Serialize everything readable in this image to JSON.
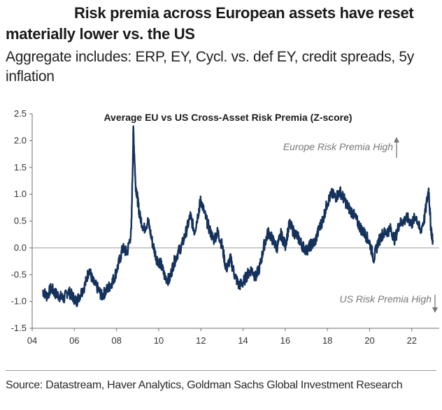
{
  "header": {
    "title": "Risk premia across European assets have reset materially lower vs. the US",
    "subtitle": "Aggregate includes: ERP, EY, Cycl. vs. def EY, credit spreads, 5y inflation"
  },
  "footer": {
    "source": "Source: Datastream, Haver Analytics, Goldman Sachs Global Investment Research"
  },
  "chart_data": {
    "type": "line",
    "title": "Average EU vs US Cross-Asset Risk Premia (Z-score)",
    "xlabel": "",
    "ylabel": "",
    "xlim": [
      2004.0,
      2023.3
    ],
    "ylim": [
      -1.5,
      2.5
    ],
    "x_ticks": [
      2004,
      2006,
      2008,
      2010,
      2012,
      2014,
      2016,
      2018,
      2020,
      2022
    ],
    "x_tick_labels": [
      "04",
      "06",
      "08",
      "10",
      "12",
      "14",
      "16",
      "18",
      "20",
      "22"
    ],
    "y_ticks": [
      -1.5,
      -1.0,
      -0.5,
      0.0,
      0.5,
      1.0,
      1.5,
      2.0,
      2.5
    ],
    "y_tick_labels": [
      "-1.5",
      "-1.0",
      "-0.5",
      "0.0",
      "0.5",
      "1.0",
      "1.5",
      "2.0",
      "2.5"
    ],
    "grid": false,
    "zero_line": true,
    "line_color": "#15325c",
    "annotation_color": "#777777",
    "annotations": [
      {
        "text": "Europe Risk Premia High",
        "arrow": "up"
      },
      {
        "text": "US Risk Premia High",
        "arrow": "down"
      }
    ],
    "series": [
      {
        "x": [
          2004.5,
          2004.7,
          2004.9,
          2005.1,
          2005.3,
          2005.5,
          2005.7,
          2005.9,
          2006.1,
          2006.3,
          2006.5,
          2006.7,
          2006.9,
          2007.1,
          2007.3,
          2007.5,
          2007.7,
          2007.9,
          2008.1,
          2008.3,
          2008.5,
          2008.7,
          2008.8,
          2008.9,
          2009.0,
          2009.1,
          2009.3,
          2009.5,
          2009.7,
          2009.9,
          2010.1,
          2010.3,
          2010.5,
          2010.7,
          2010.9,
          2011.1,
          2011.3,
          2011.5,
          2011.7,
          2011.9,
          2012.0,
          2012.2,
          2012.4,
          2012.6,
          2012.8,
          2013.0,
          2013.2,
          2013.4,
          2013.6,
          2013.8,
          2014.0,
          2014.2,
          2014.4,
          2014.6,
          2014.8,
          2015.0,
          2015.2,
          2015.4,
          2015.6,
          2015.8,
          2016.0,
          2016.2,
          2016.4,
          2016.6,
          2016.8,
          2017.0,
          2017.2,
          2017.4,
          2017.6,
          2017.8,
          2018.0,
          2018.2,
          2018.4,
          2018.6,
          2018.8,
          2019.0,
          2019.2,
          2019.4,
          2019.6,
          2019.8,
          2020.0,
          2020.2,
          2020.4,
          2020.6,
          2020.8,
          2021.0,
          2021.2,
          2021.4,
          2021.6,
          2021.8,
          2022.0,
          2022.2,
          2022.4,
          2022.6,
          2022.8,
          2022.9,
          2023.0
        ],
        "values": [
          -0.8,
          -0.9,
          -0.75,
          -0.85,
          -0.9,
          -0.95,
          -0.8,
          -0.9,
          -1.0,
          -0.85,
          -0.7,
          -0.4,
          -0.65,
          -0.75,
          -0.9,
          -0.8,
          -0.7,
          -0.55,
          -0.3,
          0.0,
          -0.1,
          0.3,
          2.2,
          1.2,
          0.9,
          0.6,
          0.35,
          0.5,
          0.1,
          -0.2,
          -0.3,
          -0.55,
          -0.6,
          -0.3,
          -0.1,
          0.05,
          0.3,
          0.6,
          0.3,
          0.7,
          0.9,
          0.6,
          0.35,
          0.15,
          0.3,
          0.05,
          -0.4,
          -0.2,
          -0.5,
          -0.7,
          -0.65,
          -0.5,
          -0.4,
          -0.55,
          -0.35,
          0.05,
          0.3,
          0.15,
          0.0,
          0.25,
          0.05,
          0.45,
          0.3,
          0.2,
          0.05,
          -0.05,
          0.05,
          0.1,
          0.35,
          0.55,
          0.85,
          1.0,
          0.95,
          1.05,
          0.9,
          0.75,
          0.65,
          0.5,
          0.35,
          0.25,
          0.1,
          -0.2,
          0.1,
          0.25,
          0.3,
          0.35,
          0.15,
          0.45,
          0.5,
          0.55,
          0.45,
          0.6,
          0.3,
          0.55,
          1.1,
          0.4,
          0.1
        ]
      }
    ]
  }
}
